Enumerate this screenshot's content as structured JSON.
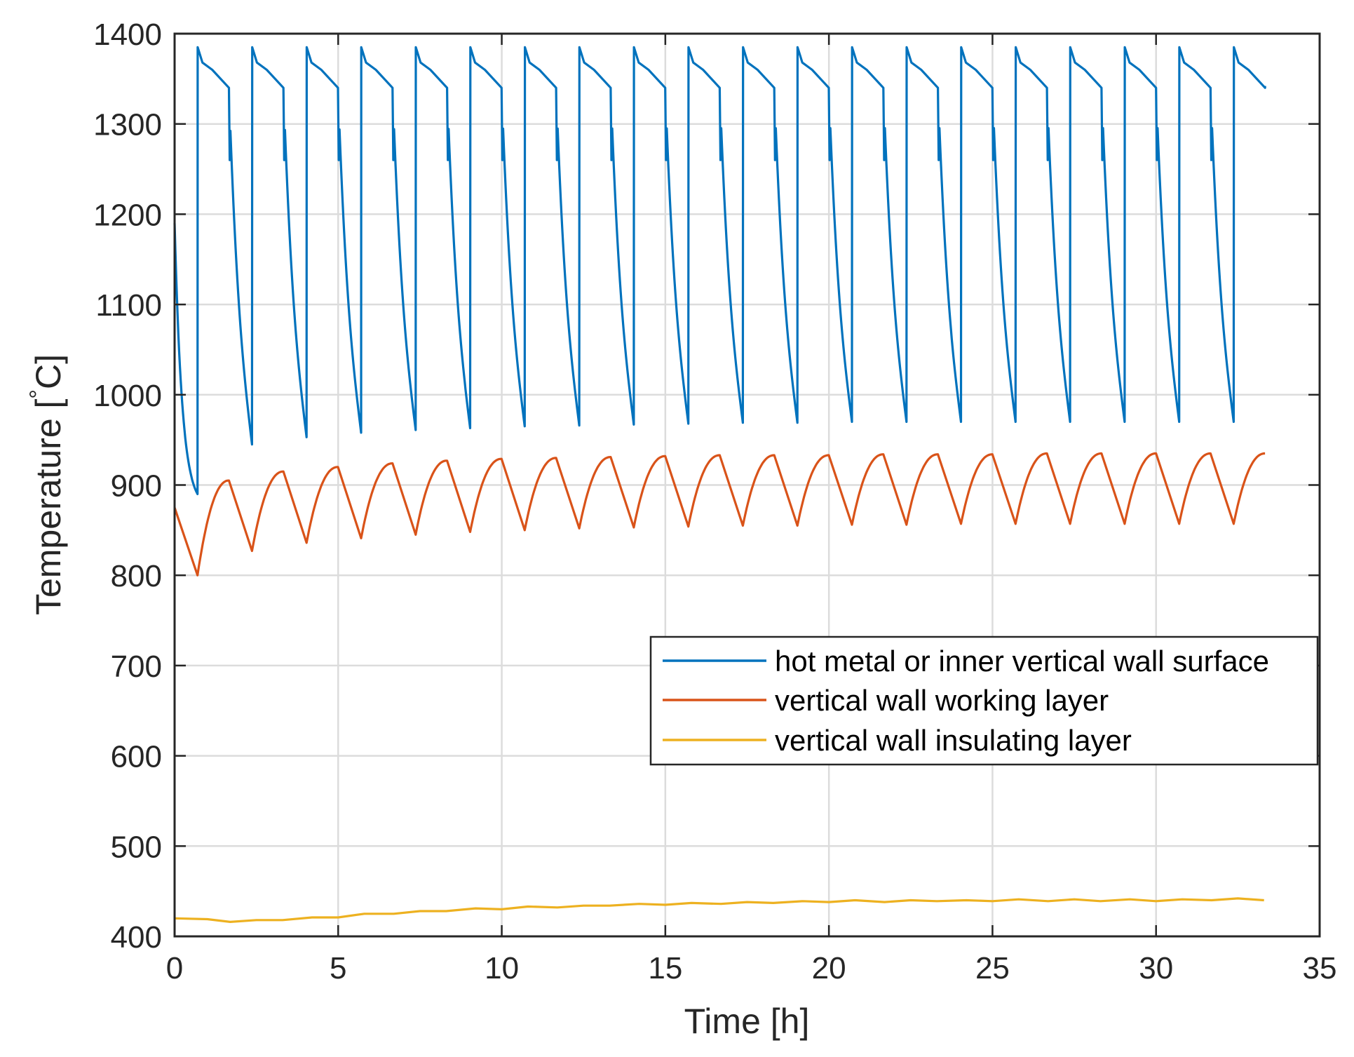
{
  "chart_data": {
    "type": "line",
    "title": "",
    "xlabel": "Time [h]",
    "ylabel_main": "Temperature [",
    "ylabel_degree": "°",
    "ylabel_unit": "C]",
    "xlim": [
      0,
      35
    ],
    "ylim": [
      400,
      1400
    ],
    "xticks": [
      "0",
      "5",
      "10",
      "15",
      "20",
      "25",
      "30",
      "35"
    ],
    "yticks": [
      "400",
      "500",
      "600",
      "700",
      "800",
      "900",
      "1000",
      "1100",
      "1200",
      "1300",
      "1400"
    ],
    "grid": true,
    "legend_position": "right-center",
    "cycle": {
      "period_h": 1.667,
      "num_cycles": 20,
      "end_time_h": 33.33
    },
    "series": [
      {
        "name": "hot metal or inner vertical wall surface",
        "color": "#0072BD",
        "start": [
          0,
          1190
        ],
        "first_min": 890,
        "peak": 1385,
        "shoulder_values": [
          1368,
          1360,
          1340
        ],
        "minima": [
          890,
          945,
          953,
          958,
          961,
          963,
          965,
          966,
          967,
          968,
          969,
          969,
          970,
          970,
          970,
          970,
          970,
          970,
          970,
          970
        ],
        "end_value": 1342
      },
      {
        "name": "vertical wall working layer",
        "color": "#D95319",
        "start": [
          0,
          875
        ],
        "maxima": [
          905,
          915,
          920,
          924,
          927,
          929,
          930,
          931,
          932,
          933,
          933,
          933,
          934,
          934,
          934,
          935,
          935,
          935,
          935,
          935
        ],
        "minima": [
          800,
          827,
          836,
          841,
          845,
          848,
          850,
          852,
          853,
          854,
          855,
          855,
          856,
          856,
          857,
          857,
          857,
          857,
          857,
          857
        ],
        "end_value": 935
      },
      {
        "name": "vertical wall insulating layer",
        "color": "#EDB120",
        "start": [
          0,
          420
        ],
        "x": [
          0,
          1,
          1.7,
          2.5,
          3.3,
          4.2,
          5.0,
          5.8,
          6.7,
          7.5,
          8.3,
          9.2,
          10.0,
          10.8,
          11.7,
          12.5,
          13.3,
          14.2,
          15.0,
          15.8,
          16.7,
          17.5,
          18.3,
          19.2,
          20.0,
          20.8,
          21.7,
          22.5,
          23.3,
          24.2,
          25.0,
          25.8,
          26.7,
          27.5,
          28.3,
          29.2,
          30.0,
          30.8,
          31.7,
          32.5,
          33.3
        ],
        "y": [
          420,
          419,
          416,
          418,
          418,
          421,
          421,
          425,
          425,
          428,
          428,
          431,
          430,
          433,
          432,
          434,
          434,
          436,
          435,
          437,
          436,
          438,
          437,
          439,
          438,
          440,
          438,
          440,
          439,
          440,
          439,
          441,
          439,
          441,
          439,
          441,
          439,
          441,
          440,
          442,
          440
        ]
      }
    ]
  }
}
